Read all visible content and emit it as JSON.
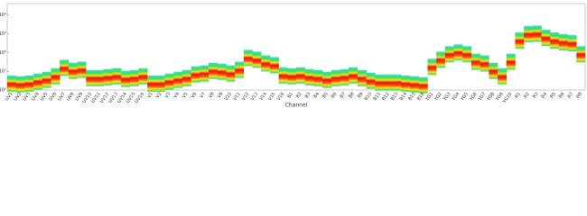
{
  "chart_data": {
    "type": "heatband",
    "x_label": "Channel",
    "categories": [
      "UV1",
      "UV2",
      "UV3",
      "UV4",
      "UV5",
      "UV6",
      "UV7",
      "UV8",
      "UV9",
      "UV10",
      "UV11",
      "UV12",
      "UV13",
      "UV14",
      "UV15",
      "UV16",
      "V1",
      "V2",
      "V3",
      "V4",
      "V5",
      "V6",
      "V7",
      "V8",
      "V9",
      "V10",
      "V11",
      "V12",
      "V13",
      "V14",
      "V15",
      "V16",
      "B1",
      "B2",
      "B3",
      "B4",
      "B5",
      "B6",
      "B7",
      "B8",
      "B9",
      "B10",
      "B11",
      "B12",
      "B13",
      "B14",
      "B15",
      "B16",
      "YG1",
      "YG2",
      "YG3",
      "YG4",
      "YG5",
      "YG6",
      "YG7",
      "YG8",
      "YG9",
      "YG10",
      "R1",
      "R2",
      "R3",
      "R4",
      "R5",
      "R6",
      "R7",
      "R8"
    ],
    "values": [
      2.2,
      2,
      2.2,
      2.8,
      3.5,
      5.4,
      15,
      10.5,
      12,
      4.3,
      4.3,
      4.8,
      5.4,
      3.9,
      4.3,
      5.4,
      2.2,
      2.2,
      2.8,
      3.5,
      4.3,
      6.8,
      7.6,
      10.5,
      9.4,
      7.6,
      12,
      51,
      41,
      26,
      21,
      6,
      5.4,
      6,
      4.8,
      4.3,
      3.5,
      4.3,
      4.8,
      6,
      4.3,
      3.1,
      2.5,
      2.5,
      2.5,
      2.2,
      2,
      1.8,
      17,
      41,
      80,
      100,
      80,
      32,
      26,
      10.5,
      5.4,
      32,
      430,
      950,
      1000,
      600,
      430,
      350,
      310,
      80
    ],
    "ylim": [
      1,
      40000
    ],
    "yticks": [
      {
        "value": 1,
        "label": "10⁰"
      },
      {
        "value": 10,
        "label": "10¹"
      },
      {
        "value": 100,
        "label": "10²"
      },
      {
        "value": 1000,
        "label": "10³"
      },
      {
        "value": 10000,
        "label": "10⁴"
      }
    ],
    "log_y": true
  }
}
